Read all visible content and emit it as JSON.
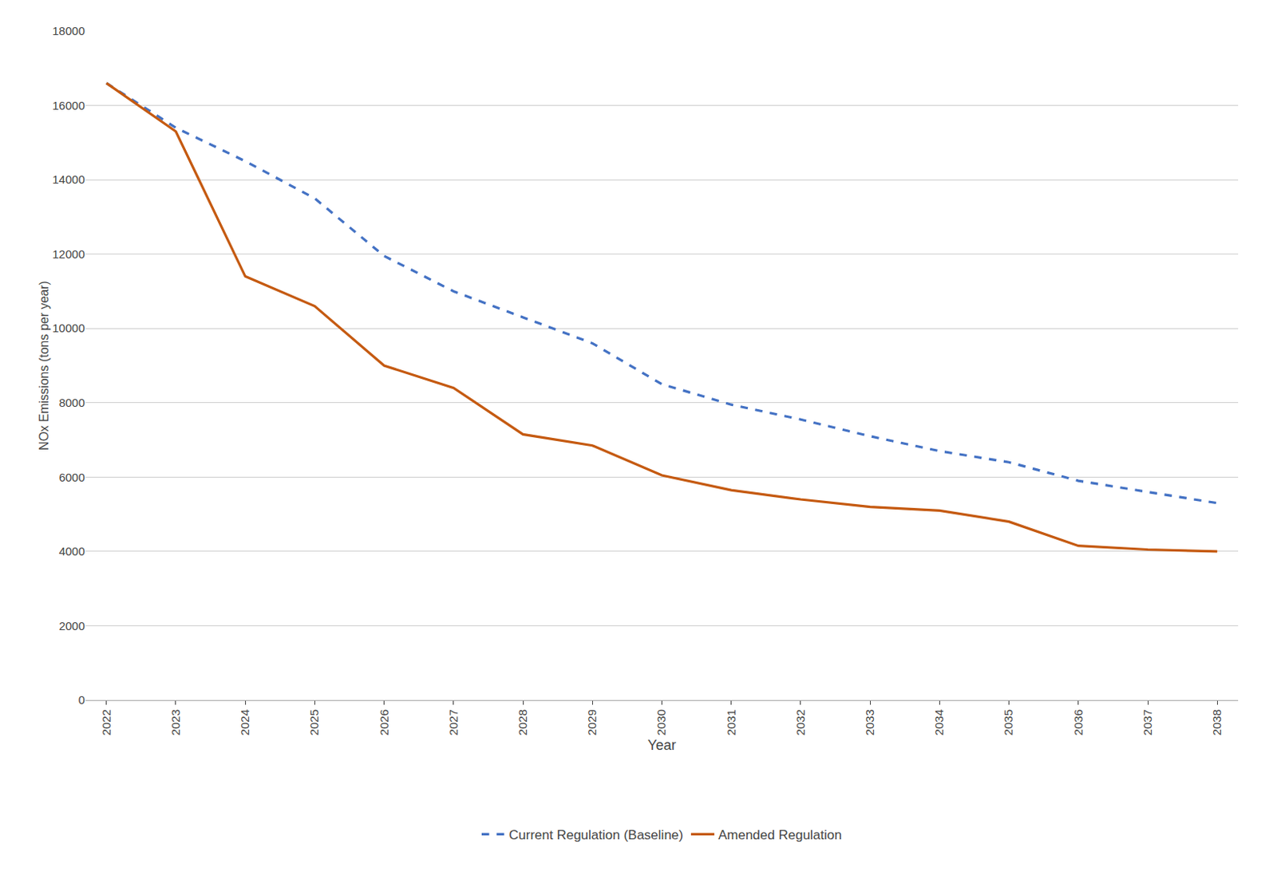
{
  "chart_data": {
    "type": "line",
    "x": [
      2022,
      2023,
      2024,
      2025,
      2026,
      2027,
      2028,
      2029,
      2030,
      2031,
      2032,
      2033,
      2034,
      2035,
      2036,
      2037,
      2038
    ],
    "series": [
      {
        "name": "Current Regulation (Baseline)",
        "color": "#4472C4",
        "line_style": "dashed",
        "values": [
          16600,
          15400,
          14500,
          13500,
          11950,
          11000,
          10300,
          9600,
          8500,
          7950,
          7550,
          7100,
          6700,
          6400,
          5900,
          5600,
          5300
        ]
      },
      {
        "name": "Amended Regulation",
        "color": "#C55A11",
        "line_style": "solid",
        "values": [
          16600,
          15300,
          11400,
          10600,
          9000,
          8400,
          7150,
          6850,
          6050,
          5650,
          5400,
          5200,
          5100,
          4800,
          4150,
          4050,
          4000
        ]
      }
    ],
    "xlabel": "Year",
    "ylabel": "NOx Emissions (tons per year)",
    "xlim": [
      2021.7,
      2038.3
    ],
    "xticks": [
      2022,
      2023,
      2024,
      2025,
      2026,
      2027,
      2028,
      2029,
      2030,
      2031,
      2032,
      2033,
      2034,
      2035,
      2036,
      2037,
      2038
    ],
    "ylim": [
      0,
      18000
    ],
    "yticks": [
      0,
      2000,
      4000,
      6000,
      8000,
      10000,
      12000,
      14000,
      16000,
      18000
    ],
    "grid": "y",
    "legend": "bottom"
  }
}
